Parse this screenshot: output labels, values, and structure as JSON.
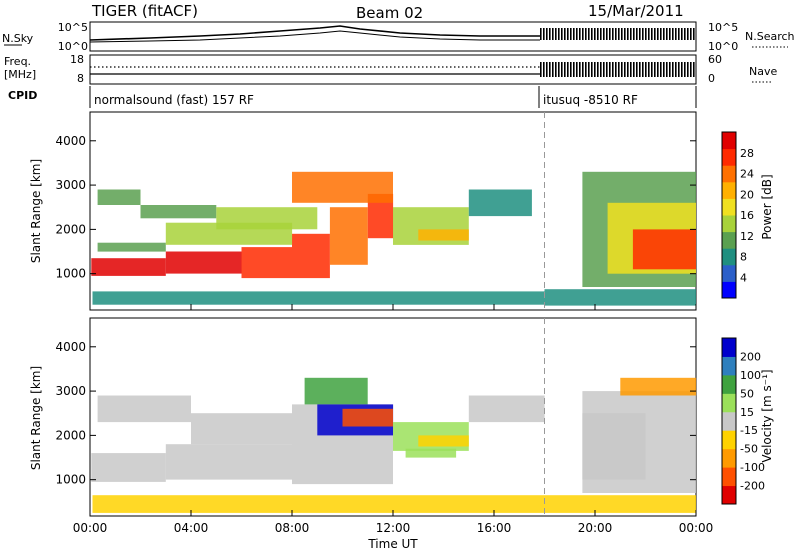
{
  "header": {
    "radar_title": "TIGER (fitACF)",
    "beam": "Beam 02",
    "date": "15/Mar/2011"
  },
  "top_panels": {
    "nsky_label": "N.Sky",
    "nsky_ticks": [
      "10^5",
      "10^0"
    ],
    "nsearch_label": "N.Search",
    "nsearch_ticks": [
      "10^5",
      "10^0"
    ],
    "freq_label": "Freq.",
    "freq_unit": "[MHz]",
    "freq_ticks": [
      "18",
      "8"
    ],
    "nave_label": "Nave",
    "nave_ticks": [
      "60",
      "0"
    ],
    "cpid_label": "CPID",
    "cpid_segments": [
      {
        "label": "normalsound (fast) 157 RF",
        "start_hour": 0,
        "end_hour": 18
      },
      {
        "label": "itusuq -8510 RF",
        "start_hour": 18,
        "end_hour": 24
      }
    ]
  },
  "chart_data": [
    {
      "type": "heatmap",
      "panel": "power",
      "ylabel": "Slant Range [km]",
      "xlabel": "",
      "xlim": [
        0,
        24
      ],
      "ylim": [
        180,
        4650
      ],
      "yticks": [
        1000,
        2000,
        3000,
        4000
      ],
      "colorbar": {
        "label": "Power [dB]",
        "ticks": [
          "28",
          "24",
          "20",
          "16",
          "12",
          "8",
          "4"
        ],
        "colors": [
          "#0000ff",
          "#2b5fc9",
          "#1f8f80",
          "#5aa050",
          "#a8d23a",
          "#f0e020",
          "#ffb000",
          "#ff7000",
          "#ff2a00",
          "#e00000"
        ]
      },
      "regions": [
        {
          "x0": 0.05,
          "x1": 3,
          "y0": 950,
          "y1": 1350,
          "value": 29
        },
        {
          "x0": 3,
          "x1": 6,
          "y0": 1000,
          "y1": 1500,
          "value": 27
        },
        {
          "x0": 6,
          "x1": 8,
          "y0": 900,
          "y1": 1600,
          "value": 25
        },
        {
          "x0": 8,
          "x1": 9.5,
          "y0": 900,
          "y1": 1900,
          "value": 24
        },
        {
          "x0": 9.5,
          "x1": 11,
          "y0": 1200,
          "y1": 2500,
          "value": 22
        },
        {
          "x0": 11,
          "x1": 12,
          "y0": 1800,
          "y1": 2800,
          "value": 25
        },
        {
          "x0": 0.3,
          "x1": 3,
          "y0": 1500,
          "y1": 1700,
          "value": 11
        },
        {
          "x0": 3,
          "x1": 8,
          "y0": 1650,
          "y1": 2150,
          "value": 12
        },
        {
          "x0": 0.3,
          "x1": 2,
          "y0": 2550,
          "y1": 2900,
          "value": 10
        },
        {
          "x0": 2,
          "x1": 5,
          "y0": 2250,
          "y1": 2550,
          "value": 9
        },
        {
          "x0": 5,
          "x1": 9,
          "y0": 2000,
          "y1": 2500,
          "value": 14
        },
        {
          "x0": 8,
          "x1": 12,
          "y0": 2600,
          "y1": 3300,
          "value": 22
        },
        {
          "x0": 12,
          "x1": 15,
          "y0": 1650,
          "y1": 2500,
          "value": 14
        },
        {
          "x0": 13,
          "x1": 15,
          "y0": 1750,
          "y1": 2000,
          "value": 20
        },
        {
          "x0": 15,
          "x1": 17.5,
          "y0": 2300,
          "y1": 2900,
          "value": 6
        },
        {
          "x0": 0.1,
          "x1": 18,
          "y0": 300,
          "y1": 600,
          "value": 6
        },
        {
          "x0": 18,
          "x1": 24,
          "y0": 280,
          "y1": 650,
          "value": 7
        },
        {
          "x0": 19.5,
          "x1": 24,
          "y0": 700,
          "y1": 3300,
          "value": 10
        },
        {
          "x0": 20.5,
          "x1": 24,
          "y0": 1000,
          "y1": 2600,
          "value": 16
        },
        {
          "x0": 21.5,
          "x1": 24,
          "y0": 1100,
          "y1": 2000,
          "value": 24
        }
      ]
    },
    {
      "type": "heatmap",
      "panel": "velocity",
      "ylabel": "Slant Range [km]",
      "xlabel": "Time UT",
      "xlim": [
        0,
        24
      ],
      "ylim": [
        180,
        4650
      ],
      "yticks": [
        1000,
        2000,
        3000,
        4000
      ],
      "xticks": [
        "00:00",
        "04:00",
        "08:00",
        "12:00",
        "16:00",
        "20:00",
        "00:00"
      ],
      "colorbar": {
        "label": "Velocity [m s⁻¹]",
        "ticks": [
          "200",
          "100",
          "50",
          "15",
          "-15",
          "-50",
          "-100",
          "-200"
        ],
        "colors": [
          "#e00000",
          "#ff5000",
          "#ff9a00",
          "#ffd200",
          "#c8c8c8",
          "#9be05a",
          "#3fa23f",
          "#2e7fbd",
          "#0000cc"
        ]
      },
      "regions": [
        {
          "x0": 0.05,
          "x1": 3,
          "y0": 950,
          "y1": 1600,
          "value": 0
        },
        {
          "x0": 3,
          "x1": 8,
          "y0": 1000,
          "y1": 1800,
          "value": 0
        },
        {
          "x0": 8,
          "x1": 12,
          "y0": 900,
          "y1": 2700,
          "value": 0
        },
        {
          "x0": 0.3,
          "x1": 4,
          "y0": 2300,
          "y1": 2900,
          "value": 0
        },
        {
          "x0": 4,
          "x1": 8,
          "y0": 1800,
          "y1": 2500,
          "value": 0
        },
        {
          "x0": 8.5,
          "x1": 11,
          "y0": 2700,
          "y1": 3300,
          "value": 120
        },
        {
          "x0": 9,
          "x1": 12,
          "y0": 2000,
          "y1": 2700,
          "value": 180
        },
        {
          "x0": 10,
          "x1": 12,
          "y0": 2200,
          "y1": 2600,
          "value": -150
        },
        {
          "x0": 12,
          "x1": 15,
          "y0": 1650,
          "y1": 2300,
          "value": 60
        },
        {
          "x0": 13,
          "x1": 15,
          "y0": 1750,
          "y1": 2000,
          "value": -70
        },
        {
          "x0": 12.5,
          "x1": 14.5,
          "y0": 1500,
          "y1": 1700,
          "value": 30
        },
        {
          "x0": 15,
          "x1": 18,
          "y0": 2300,
          "y1": 2900,
          "value": 0
        },
        {
          "x0": 0.1,
          "x1": 12,
          "y0": 250,
          "y1": 650,
          "value": -40
        },
        {
          "x0": 12,
          "x1": 24,
          "y0": 250,
          "y1": 650,
          "value": -60
        },
        {
          "x0": 19.5,
          "x1": 24,
          "y0": 700,
          "y1": 3000,
          "value": 0
        },
        {
          "x0": 19.5,
          "x1": 22,
          "y0": 1000,
          "y1": 2500,
          "value": 20
        },
        {
          "x0": 21,
          "x1": 24,
          "y0": 2900,
          "y1": 3300,
          "value": -120
        }
      ]
    }
  ]
}
